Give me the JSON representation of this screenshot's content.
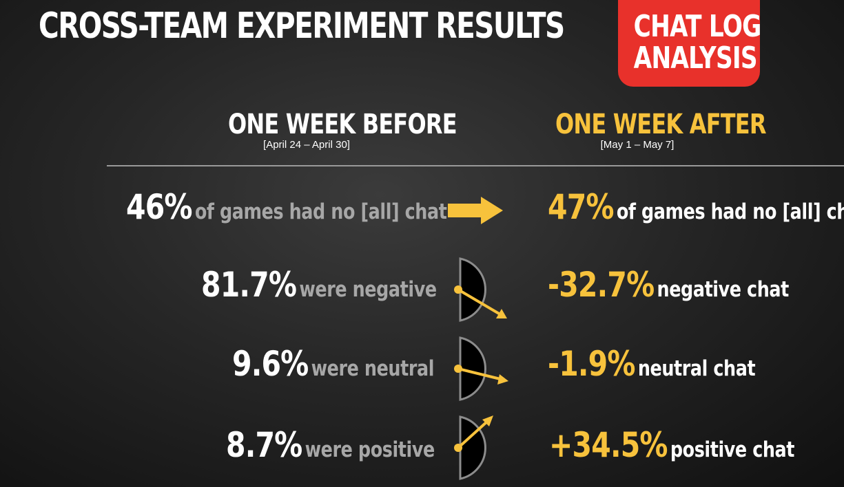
{
  "title": "CROSS-TEAM EXPERIMENT RESULTS",
  "badge": {
    "line1": "CHAT LOG",
    "line2": "ANALYSIS"
  },
  "before": {
    "heading": "ONE WEEK BEFORE",
    "dates": "[April 24 – April 30]"
  },
  "after": {
    "heading": "ONE WEEK AFTER",
    "dates": "[May 1 – May 7]"
  },
  "rows": [
    {
      "before_value": "46%",
      "before_label": "of games had no [all] chat",
      "icon": "right-arrow-icon",
      "after_value": "47%",
      "after_label": "of games had no [all] chat"
    },
    {
      "before_value": "81.7%",
      "before_label": "were negative",
      "icon": "gauge-arrow-down-icon",
      "after_value": "-32.7%",
      "after_label": "negative chat"
    },
    {
      "before_value": "9.6%",
      "before_label": "were neutral",
      "icon": "gauge-arrow-slight-down-icon",
      "after_value": "-1.9%",
      "after_label": "neutral chat"
    },
    {
      "before_value": "8.7%",
      "before_label": "were positive",
      "icon": "gauge-arrow-up-icon",
      "after_value": "+34.5%",
      "after_label": "positive chat"
    }
  ],
  "colors": {
    "accent": "#f7c23c",
    "badge": "#e8312b",
    "muted_text": "#a7a7a7"
  }
}
